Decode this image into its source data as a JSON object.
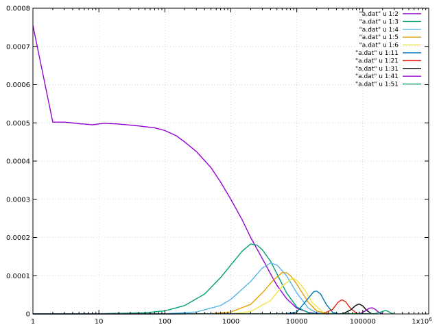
{
  "chart_data": {
    "type": "line",
    "title": "",
    "xlabel": "",
    "ylabel": "",
    "x_scale": "log",
    "xlim": [
      1,
      1000000
    ],
    "ylim": [
      0,
      0.0008
    ],
    "grid": true,
    "legend_placement": "top-right",
    "x_ticks": [
      {
        "value": 1,
        "label": "1"
      },
      {
        "value": 10,
        "label": "10"
      },
      {
        "value": 100,
        "label": "100"
      },
      {
        "value": 1000,
        "label": "1000"
      },
      {
        "value": 10000,
        "label": "10000"
      },
      {
        "value": 100000,
        "label": "100000"
      },
      {
        "value": 1000000,
        "label": "1x10",
        "exponent": "6"
      }
    ],
    "y_ticks": [
      {
        "value": 0,
        "label": "0"
      },
      {
        "value": 0.0001,
        "label": "0.0001"
      },
      {
        "value": 0.0002,
        "label": "0.0002"
      },
      {
        "value": 0.0003,
        "label": "0.0003"
      },
      {
        "value": 0.0004,
        "label": "0.0004"
      },
      {
        "value": 0.0005,
        "label": "0.0005"
      },
      {
        "value": 0.0006,
        "label": "0.0006"
      },
      {
        "value": 0.0007,
        "label": "0.0007"
      },
      {
        "value": 0.0008,
        "label": "0.0008"
      }
    ],
    "series": [
      {
        "name": "\"a.dat\" u 1:2",
        "color": "#9400d3",
        "points": [
          [
            1,
            0.000755
          ],
          [
            2,
            0.000502
          ],
          [
            3,
            0.000502
          ],
          [
            5,
            0.000498
          ],
          [
            8,
            0.000495
          ],
          [
            12,
            0.000499
          ],
          [
            20,
            0.000497
          ],
          [
            40,
            0.000492
          ],
          [
            70,
            0.000487
          ],
          [
            100,
            0.00048
          ],
          [
            150,
            0.000466
          ],
          [
            200,
            0.00045
          ],
          [
            300,
            0.000425
          ],
          [
            500,
            0.000383
          ],
          [
            700,
            0.000345
          ],
          [
            1000,
            0.0003
          ],
          [
            1500,
            0.000245
          ],
          [
            2000,
            0.0002
          ],
          [
            3000,
            0.000145
          ],
          [
            4000,
            0.000105
          ],
          [
            5000,
            7.5e-05
          ],
          [
            7000,
            4e-05
          ],
          [
            10000,
            1.5e-05
          ],
          [
            15000,
            4e-06
          ],
          [
            20000,
            1e-06
          ],
          [
            30000,
            0
          ]
        ]
      },
      {
        "name": "\"a.dat\" u 1:3",
        "color": "#009e73",
        "points": [
          [
            1,
            0
          ],
          [
            10,
            5e-07
          ],
          [
            50,
            3e-06
          ],
          [
            100,
            8e-06
          ],
          [
            200,
            2.2e-05
          ],
          [
            400,
            5.2e-05
          ],
          [
            700,
            9.5e-05
          ],
          [
            1000,
            0.000128
          ],
          [
            1500,
            0.000165
          ],
          [
            2000,
            0.000183
          ],
          [
            2500,
            0.00018
          ],
          [
            3000,
            0.000168
          ],
          [
            4000,
            0.000138
          ],
          [
            5000,
            0.000105
          ],
          [
            7000,
            5.5e-05
          ],
          [
            10000,
            1.8e-05
          ],
          [
            15000,
            3e-06
          ],
          [
            20000,
            0
          ]
        ]
      },
      {
        "name": "\"a.dat\" u 1:4",
        "color": "#56b4e9",
        "points": [
          [
            1,
            0
          ],
          [
            100,
            5e-07
          ],
          [
            300,
            5e-06
          ],
          [
            700,
            2.2e-05
          ],
          [
            1000,
            3.8e-05
          ],
          [
            2000,
            8.5e-05
          ],
          [
            3000,
            0.00012
          ],
          [
            4000,
            0.000133
          ],
          [
            5000,
            0.000128
          ],
          [
            7000,
            0.0001
          ],
          [
            10000,
            5.5e-05
          ],
          [
            15000,
            1.5e-05
          ],
          [
            20000,
            3e-06
          ],
          [
            30000,
            0
          ]
        ]
      },
      {
        "name": "\"a.dat\" u 1:5",
        "color": "#e69f00",
        "points": [
          [
            1,
            0
          ],
          [
            500,
            5e-07
          ],
          [
            1000,
            5e-06
          ],
          [
            2000,
            2.5e-05
          ],
          [
            3000,
            5.5e-05
          ],
          [
            4500,
            9e-05
          ],
          [
            6000,
            0.000108
          ],
          [
            7000,
            0.000108
          ],
          [
            8000,
            0.0001
          ],
          [
            10000,
            7.8e-05
          ],
          [
            15000,
            3e-05
          ],
          [
            20000,
            8e-06
          ],
          [
            30000,
            0
          ]
        ]
      },
      {
        "name": "\"a.dat\" u 1:6",
        "color": "#f0e442",
        "points": [
          [
            1,
            0
          ],
          [
            1000,
            5e-07
          ],
          [
            2000,
            6e-06
          ],
          [
            4000,
            3.5e-05
          ],
          [
            6000,
            7.2e-05
          ],
          [
            8000,
            9e-05
          ],
          [
            9000,
            9.2e-05
          ],
          [
            10000,
            8.8e-05
          ],
          [
            13000,
            6.5e-05
          ],
          [
            17000,
            3e-05
          ],
          [
            25000,
            5e-06
          ],
          [
            35000,
            0
          ]
        ]
      },
      {
        "name": "\"a.dat\" u 1:11",
        "color": "#0072b2",
        "points": [
          [
            1,
            0
          ],
          [
            7000,
            5e-07
          ],
          [
            10000,
            5e-06
          ],
          [
            14000,
            3.5e-05
          ],
          [
            18000,
            5.8e-05
          ],
          [
            20000,
            6e-05
          ],
          [
            23000,
            5.2e-05
          ],
          [
            28000,
            2.5e-05
          ],
          [
            35000,
            4e-06
          ],
          [
            45000,
            0
          ]
        ]
      },
      {
        "name": "\"a.dat\" u 1:21",
        "color": "#e51e10",
        "points": [
          [
            1,
            0
          ],
          [
            25000,
            5e-07
          ],
          [
            35000,
            1.2e-05
          ],
          [
            42000,
            3e-05
          ],
          [
            48000,
            3.7e-05
          ],
          [
            55000,
            3.2e-05
          ],
          [
            65000,
            1.5e-05
          ],
          [
            80000,
            2e-06
          ],
          [
            95000,
            0
          ]
        ]
      },
      {
        "name": "\"a.dat\" u 1:31",
        "color": "#000000",
        "points": [
          [
            1,
            0
          ],
          [
            50000,
            5e-07
          ],
          [
            65000,
            1e-05
          ],
          [
            78000,
            2.2e-05
          ],
          [
            88000,
            2.6e-05
          ],
          [
            100000,
            2.1e-05
          ],
          [
            115000,
            9e-06
          ],
          [
            135000,
            1e-06
          ],
          [
            150000,
            0
          ]
        ]
      },
      {
        "name": "\"a.dat\" u 1:41",
        "color": "#9400d3",
        "points": [
          [
            1,
            0
          ],
          [
            90000,
            5e-07
          ],
          [
            110000,
            8e-06
          ],
          [
            125000,
            1.5e-05
          ],
          [
            140000,
            1.6e-05
          ],
          [
            155000,
            1.2e-05
          ],
          [
            175000,
            4e-06
          ],
          [
            200000,
            0
          ]
        ]
      },
      {
        "name": "\"a.dat\" u 1:51",
        "color": "#009e73",
        "points": [
          [
            1,
            0
          ],
          [
            150000,
            5e-07
          ],
          [
            190000,
            5e-06
          ],
          [
            220000,
            9e-06
          ],
          [
            240000,
            7e-06
          ],
          [
            270000,
            2e-06
          ],
          [
            300000,
            0
          ]
        ]
      }
    ]
  }
}
